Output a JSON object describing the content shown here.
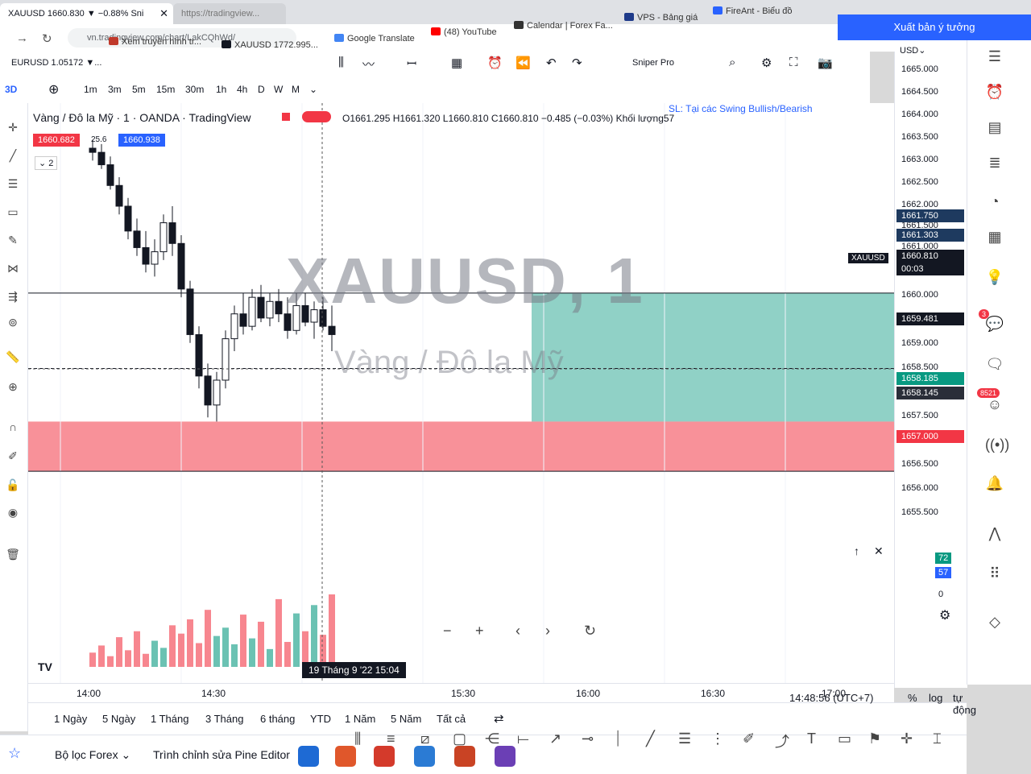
{
  "browser": {
    "active_tab": "XAUUSD 1660.830 ▼ −0.88% Sni",
    "other_tab": "https://tradingview...",
    "address": "vn.tradingview.com/chart/LakCQhWd/",
    "bookmarks": [
      {
        "label": "Xem truyền hình tr...",
        "color": "#c0392b"
      },
      {
        "label": "XAUUSD 1772.995...",
        "color": "#131722"
      },
      {
        "label": "Google Translate",
        "color": "#4285f4"
      },
      {
        "label": "(48) YouTube",
        "color": "#ff0000"
      },
      {
        "label": "Calendar | Forex Fa...",
        "color": "#333333"
      },
      {
        "label": "VPS - Bảng giá",
        "color": "#1e3a8a"
      },
      {
        "label": "FireAnt - Biểu đồ",
        "color": "#2962ff"
      }
    ]
  },
  "toolbar": {
    "eurusd": "EURUSD 1.05172 ▼...",
    "sniper": "Sniper Pro",
    "publish": "Xuất bản ý tưởng",
    "timeframes": [
      "1m",
      "3m",
      "5m",
      "15m",
      "30m",
      "1h",
      "4h",
      "D",
      "W",
      "M"
    ],
    "currency": "USD"
  },
  "legend": {
    "symbol": "Vàng / Đô la Mỹ · 1 · OANDA · TradingView",
    "ohlc": "O1661.295 H1661.320 L1660.810 C1660.810 −0.485 (−0.03%) Khối lượng57",
    "bid": "1660.682",
    "spread": "25.6",
    "ask": "1660.938",
    "note": "SL: Tại các Swing Bullish/Bearish",
    "collapse": "2"
  },
  "watermark": {
    "title": "XAUUSD, 1",
    "subtitle": "Vàng / Đô la Mỹ"
  },
  "price_axis": {
    "labels": [
      "1665.000",
      "1664.500",
      "1664.000",
      "1663.500",
      "1663.000",
      "1662.500",
      "1662.000",
      "1661.500",
      "1661.000",
      "1660.000",
      "1659.000",
      "1658.500",
      "1657.500",
      "1656.500",
      "1656.000",
      "1655.500"
    ],
    "tags": [
      {
        "text": "1661.750",
        "color": "#1e3a5f"
      },
      {
        "text": "1661.303",
        "color": "#1e3a5f"
      },
      {
        "text": "1660.810",
        "color": "#131722"
      },
      {
        "text": "00:03",
        "color": "#131722"
      },
      {
        "text": "1659.481",
        "color": "#131722"
      },
      {
        "text": "1658.185",
        "color": "#089981"
      },
      {
        "text": "1658.145",
        "color": "#2a2e39"
      },
      {
        "text": "1657.000",
        "color": "#f23645"
      }
    ],
    "symbol_tag": "XAUUSD",
    "volume_labels": [
      "72",
      "57",
      "0"
    ]
  },
  "time_axis": {
    "labels": [
      "14:00",
      "14:30",
      "15:30",
      "16:00",
      "16:30",
      "17:00"
    ],
    "cursor_label": "19 Tháng 9 '22   15:04"
  },
  "bottom": {
    "ranges": [
      "1 Ngày",
      "5 Ngày",
      "1 Tháng",
      "3 Tháng",
      "6 tháng",
      "YTD",
      "1 Năm",
      "5 Năm",
      "Tất cả"
    ],
    "clock": "14:48:56 (UTC+7)",
    "pct": "%",
    "log": "log",
    "auto": "tự động",
    "screener": "Bộ lọc Forex",
    "pine": "Trình chỉnh sửa Pine Editor"
  },
  "right_badges": {
    "chat": "3",
    "ideas": "8521"
  },
  "chart_data": {
    "type": "candlestick",
    "ylim": [
      1655.0,
      1665.5
    ],
    "candles": [
      {
        "o": 1664.8,
        "h": 1665.0,
        "l": 1664.5,
        "c": 1664.7
      },
      {
        "o": 1664.7,
        "h": 1664.9,
        "l": 1664.3,
        "c": 1664.4
      },
      {
        "o": 1664.4,
        "h": 1664.6,
        "l": 1663.8,
        "c": 1663.9
      },
      {
        "o": 1663.9,
        "h": 1664.1,
        "l": 1663.2,
        "c": 1663.4
      },
      {
        "o": 1663.4,
        "h": 1663.6,
        "l": 1662.6,
        "c": 1662.8
      },
      {
        "o": 1662.8,
        "h": 1663.1,
        "l": 1662.2,
        "c": 1662.4
      },
      {
        "o": 1662.4,
        "h": 1662.8,
        "l": 1661.8,
        "c": 1662.0
      },
      {
        "o": 1662.0,
        "h": 1662.6,
        "l": 1661.7,
        "c": 1662.3
      },
      {
        "o": 1662.3,
        "h": 1663.2,
        "l": 1662.1,
        "c": 1663.0
      },
      {
        "o": 1663.0,
        "h": 1663.4,
        "l": 1662.2,
        "c": 1662.5
      },
      {
        "o": 1662.5,
        "h": 1662.7,
        "l": 1661.2,
        "c": 1661.4
      },
      {
        "o": 1661.4,
        "h": 1661.6,
        "l": 1660.1,
        "c": 1660.3
      },
      {
        "o": 1660.3,
        "h": 1660.5,
        "l": 1659.0,
        "c": 1659.3
      },
      {
        "o": 1659.3,
        "h": 1659.6,
        "l": 1658.3,
        "c": 1658.6
      },
      {
        "o": 1658.6,
        "h": 1659.4,
        "l": 1658.2,
        "c": 1659.2
      },
      {
        "o": 1659.2,
        "h": 1660.4,
        "l": 1659.0,
        "c": 1660.2
      },
      {
        "o": 1660.2,
        "h": 1661.0,
        "l": 1659.9,
        "c": 1660.8
      },
      {
        "o": 1660.8,
        "h": 1661.3,
        "l": 1660.3,
        "c": 1660.5
      },
      {
        "o": 1660.5,
        "h": 1661.4,
        "l": 1660.4,
        "c": 1661.2
      },
      {
        "o": 1661.2,
        "h": 1661.5,
        "l": 1660.6,
        "c": 1660.7
      },
      {
        "o": 1660.7,
        "h": 1661.3,
        "l": 1660.5,
        "c": 1661.1
      },
      {
        "o": 1661.1,
        "h": 1661.4,
        "l": 1660.6,
        "c": 1660.8
      },
      {
        "o": 1660.8,
        "h": 1661.2,
        "l": 1660.2,
        "c": 1660.4
      },
      {
        "o": 1660.4,
        "h": 1661.3,
        "l": 1660.3,
        "c": 1661.0
      },
      {
        "o": 1661.0,
        "h": 1661.3,
        "l": 1660.5,
        "c": 1660.6
      },
      {
        "o": 1660.6,
        "h": 1661.1,
        "l": 1660.2,
        "c": 1660.9
      },
      {
        "o": 1660.9,
        "h": 1661.2,
        "l": 1660.4,
        "c": 1660.5
      },
      {
        "o": 1660.5,
        "h": 1661.0,
        "l": 1659.9,
        "c": 1660.3
      }
    ],
    "volume": [
      12,
      18,
      9,
      25,
      14,
      30,
      11,
      22,
      16,
      35,
      28,
      40,
      20,
      48,
      26,
      33,
      19,
      44,
      24,
      38,
      15,
      57,
      21,
      45,
      30,
      52,
      27,
      61
    ],
    "zones": [
      {
        "kind": "profit",
        "from": 1658.2,
        "to": 1661.3
      },
      {
        "kind": "loss",
        "from": 1657.0,
        "to": 1658.2
      }
    ],
    "hlines": [
      1661.303,
      1659.481,
      1657.0
    ]
  }
}
